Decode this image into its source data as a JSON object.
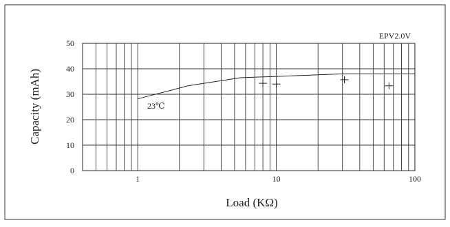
{
  "chart_data": {
    "type": "line",
    "title": "",
    "annotation_top_right": "EPV2.0V",
    "curve_label": "23℃",
    "xlabel": "Load (KΩ)",
    "ylabel": "Capacity (mAh)",
    "x_scale": "log",
    "xlim": [
      0.4,
      100
    ],
    "ylim": [
      0,
      50
    ],
    "x_ticks": [
      1,
      10,
      100
    ],
    "x_tick_labels": [
      "1",
      "10",
      "100"
    ],
    "y_ticks": [
      0,
      10,
      20,
      30,
      40,
      50
    ],
    "y_tick_labels": [
      "0",
      "10",
      "20",
      "30",
      "40",
      "50"
    ],
    "grid": true,
    "series": [
      {
        "values": [
          {
            "x": 1,
            "y": 28.2
          },
          {
            "x": 2.3,
            "y": 33.3
          },
          {
            "x": 5.5,
            "y": 36.5
          },
          {
            "x": 10,
            "y": 37.0
          },
          {
            "x": 30,
            "y": 38.0
          },
          {
            "x": 100,
            "y": 38.0
          }
        ]
      }
    ],
    "markers": [
      {
        "x": 8,
        "y": 34.3
      },
      {
        "x": 10,
        "y": 34.0
      },
      {
        "x": 31,
        "y": 35.7
      },
      {
        "x": 65,
        "y": 33.3
      }
    ]
  }
}
